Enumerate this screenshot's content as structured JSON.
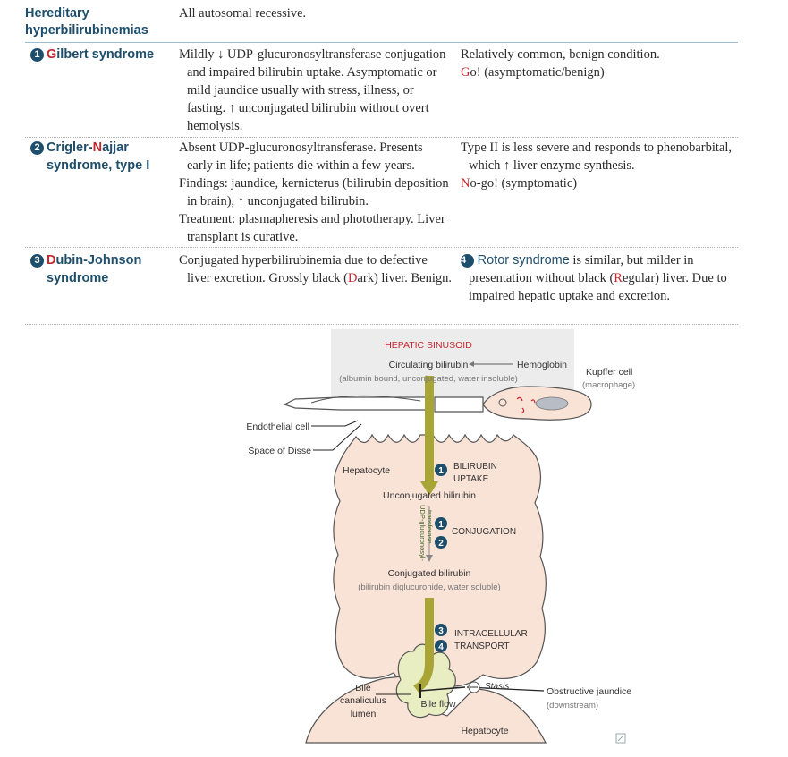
{
  "header": {
    "title": "Hereditary hyperbilirubinemias",
    "subtitle": "All autosomal recessive."
  },
  "rows": [
    {
      "number": "1",
      "title_parts": [
        "G",
        "ilbert syndrome"
      ],
      "col2": [
        "Mildly ↓ UDP-glucuronosyltransferase conjugation and impaired bilirubin uptake. Asymptomatic or mild jaundice usually with stress, illness, or fasting. ↑ unconjugated bilirubin without overt hemolysis."
      ],
      "col3_text": "Relatively common, benign condition.",
      "col3_mnemonic_letter": "G",
      "col3_mnemonic_rest": "o! (asymptomatic/benign)"
    },
    {
      "number": "2",
      "title_line1_parts": [
        "Crigler-",
        "N",
        "ajjar"
      ],
      "title_line2": "syndrome, type I",
      "col2": [
        "Absent UDP-glucuronosyltransferase. Presents early in life; patients die within a few years.",
        "Findings: jaundice, kernicterus (bilirubin deposition in brain), ↑ unconjugated bilirubin.",
        "Treatment: plasmapheresis and phototherapy. Liver transplant is curative."
      ],
      "col3_text": "Type II is less severe and responds to phenobarbital, which ↑ liver enzyme synthesis.",
      "col3_mnemonic_letter": "N",
      "col3_mnemonic_rest": "o-go! (symptomatic)"
    },
    {
      "number": "3",
      "title_line1_parts": [
        "D",
        "ubin-Johnson"
      ],
      "title_line2": "syndrome",
      "col2_before": "Conjugated hyperbilirubinemia due to defective liver excretion. Grossly black (",
      "col2_letter": "D",
      "col2_after": "ark) liver. Benign.",
      "col3_number": "4",
      "col3_term": "Rotor syndrome",
      "col3_before": " is similar, but milder in presentation without black (",
      "col3_letter": "R",
      "col3_after": "egular) liver. Due to impaired hepatic uptake and excretion."
    }
  ],
  "diagram": {
    "sinusoid_label": "HEPATIC SINUSOID",
    "circulating": "Circulating bilirubin",
    "circulating_note": "(albumin bound, unconjugated, water insoluble)",
    "hemoglobin": "Hemoglobin",
    "kupffer": "Kupffer cell",
    "kupffer_note": "(macrophage)",
    "endothelial": "Endothelial cell",
    "disse": "Space of Disse",
    "hepatocyte_top": "Hepatocyte",
    "uptake_1": "BILIRUBIN",
    "uptake_2": "UPTAKE",
    "unconjugated": "Unconjugated bilirubin",
    "enzyme_1": "UDP-glucuronosyl-",
    "enzyme_2": "transferase",
    "conjugation": "CONJUGATION",
    "conjugated": "Conjugated bilirubin",
    "conjugated_note": "(bilirubin diglucuronide, water soluble)",
    "transport_1": "INTRACELLULAR",
    "transport_2": "TRANSPORT",
    "canaliculus_1": "Bile",
    "canaliculus_2": "canaliculus",
    "canaliculus_3": "lumen",
    "bile_flow": "Bile flow",
    "stasis": "Stasis",
    "obstructive": "Obstructive jaundice",
    "obstructive_note": "(downstream)",
    "hepatocyte_bottom": "Hepatocyte",
    "step_numbers": [
      "1",
      "1",
      "2",
      "3",
      "4"
    ],
    "colors": {
      "hepatocyte": "#f9e2d6",
      "outline": "#555555",
      "arrow": "#a8a436",
      "red_label": "#c4282f",
      "sinusoid": "#ececec"
    }
  }
}
